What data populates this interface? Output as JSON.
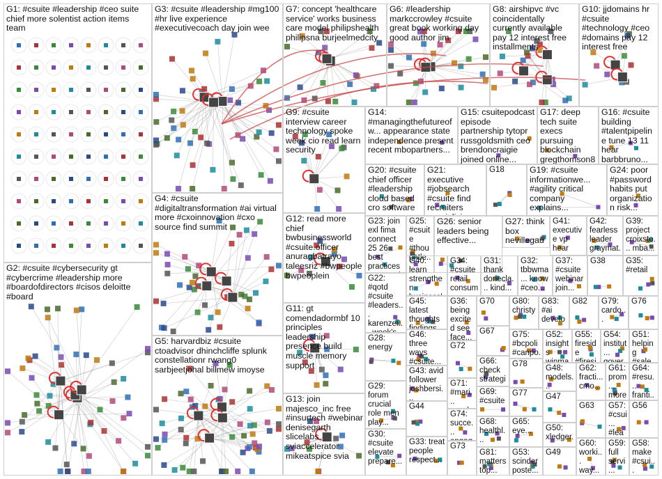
{
  "groups": [
    {
      "id": "G1",
      "label": "G1: #csuite #leadership #ceo suite chief more solentist action items team"
    },
    {
      "id": "G2",
      "label": "G2: #csuite #cybersecurity gt #cybercrime #leadership more #boardofdirectors #cisos deloitte #board"
    },
    {
      "id": "G3",
      "label": "G3: #csuite #leadership #mg100 #hr live experience #executivecoach day join wee"
    },
    {
      "id": "G4",
      "label": "G4: #csuite #digitaltransformation #ai virtual more #cxoinnovation #cxo source find summit"
    },
    {
      "id": "G5",
      "label": "G5: harvardbiz #csuite ctoadvisor dhinchcliffe splunk constellationr rwang0 sarbjeetjohal billmew imoyse"
    },
    {
      "id": "G6",
      "label": "G6: #leadership markccrowley #csuite great book working day good author jim"
    },
    {
      "id": "G7",
      "label": "G7: concept 'healthcare service' works business care model philipshealth philipsna burjeelmedcity"
    },
    {
      "id": "G8",
      "label": "G8: airshipvc #vc coincidentally currently available pay 12 interest free installments"
    },
    {
      "id": "G9",
      "label": "G9: #csuite interview career technology spoke week cio read learn security"
    },
    {
      "id": "G10",
      "label": "G10: jjdomains hr #csuite #technology #ceo #domains pay 12 interest free"
    },
    {
      "id": "G11",
      "label": "G11: gt comendadormbf 10 principles leadership presence build muscle memory support"
    },
    {
      "id": "G12",
      "label": "G12: read more chief bwbusinessworld #csuite.officer anuragbatrayo taleesriz #bwpeople bwpeoplein"
    },
    {
      "id": "G13",
      "label": "G13: join majesco_inc free #insurtech #webinar denisegarth slicelabs sviaccelerator mikeatspice svia"
    },
    {
      "id": "G14",
      "label": "G14: #managingthefutureofw... appearance state independence present recent mbopartners..."
    },
    {
      "id": "G15",
      "label": "G15: csuitepodcast episode partnership tytopr russgoldsmith ceo brendoncraigie joined online..."
    },
    {
      "id": "G16",
      "label": "G16: #csuite building #talentpipeline tune 13 11 hear barbbruno..."
    },
    {
      "id": "G17",
      "label": "G17: deep tech suite execs pursuing blockchain gregthomson8..."
    },
    {
      "id": "G18",
      "label": "G18"
    },
    {
      "id": "G19",
      "label": "G19: #csuite informationwe... #agility critical company explains..."
    },
    {
      "id": "G20",
      "label": "G20: #csuite chief officer #leadership cloud based cro software svp..."
    },
    {
      "id": "G21",
      "label": "G21: executive #jobsearch #csuite find recruiters specializing..."
    },
    {
      "id": "G22",
      "label": "G22: #qotd #csuite #leaders... karenzei... week's..."
    },
    {
      "id": "G23",
      "label": "G23: join exl fima connect 25 26 best practices perspecti..."
    },
    {
      "id": "G24",
      "label": "G24: poor #password habits put organization risk..."
    },
    {
      "id": "G25",
      "label": "G25: #csuite #thoughtle..."
    },
    {
      "id": "G26",
      "label": "G26: senior leaders being effective..."
    },
    {
      "id": "G27",
      "label": "G27: think box nevillegaunt edifylearnin..."
    },
    {
      "id": "G28",
      "label": "G28: energy"
    },
    {
      "id": "G29",
      "label": "G29: forum crucial role men play..."
    },
    {
      "id": "G30",
      "label": "G30: #csuite elevate prepare..."
    },
    {
      "id": "G31",
      "label": "G31: thank doriecla... kind..."
    },
    {
      "id": "G32",
      "label": "G32: tbbwma... know #ceo..."
    },
    {
      "id": "G33",
      "label": "G33: treat people respect..."
    },
    {
      "id": "G34",
      "label": "G34: #csuite retail consum..."
    },
    {
      "id": "G35",
      "label": "G35: #retail"
    },
    {
      "id": "G36",
      "label": "G36: being excited see face..."
    },
    {
      "id": "G37",
      "label": "G37: #csuite webinar join..."
    },
    {
      "id": "G38",
      "label": "G38"
    },
    {
      "id": "G39",
      "label": "G39: project croixsto... mba..."
    },
    {
      "id": "G40",
      "label": "G40: learn strengthen business'..."
    },
    {
      "id": "G41",
      "label": "G41: executive vp hear newmo..."
    },
    {
      "id": "G42",
      "label": "G42: fearless leader graymat..."
    },
    {
      "id": "G43",
      "label": "G43: avid follower joshbersi..."
    },
    {
      "id": "G44",
      "label": "G44"
    },
    {
      "id": "G45",
      "label": "G45: latest thoughts findings..."
    },
    {
      "id": "G46",
      "label": "G46: three ways #csuite..."
    },
    {
      "id": "G47",
      "label": "G47"
    },
    {
      "id": "G48",
      "label": "G48: models..."
    },
    {
      "id": "G49",
      "label": "G49"
    },
    {
      "id": "G50",
      "label": "G50: xledger..."
    },
    {
      "id": "G51",
      "label": "G51: helping #sale..."
    },
    {
      "id": "G52",
      "label": "G52: insights winma..."
    },
    {
      "id": "G53",
      "label": "G53: scinder poste..."
    },
    {
      "id": "G54",
      "label": "G54: institut... gover..."
    },
    {
      "id": "G55",
      "label": "G55: fireside #firesi..."
    },
    {
      "id": "G56",
      "label": "G56"
    },
    {
      "id": "G57",
      "label": "G57: #csui... #lead..."
    },
    {
      "id": "G58",
      "label": "G58: make #csui..."
    },
    {
      "id": "G59",
      "label": "G59: full servi..."
    },
    {
      "id": "G60",
      "label": "G60: worki... way..."
    },
    {
      "id": "G61",
      "label": "G61: prom... more"
    },
    {
      "id": "G62",
      "label": "G62: fracti... cmo..."
    },
    {
      "id": "G63",
      "label": "G63"
    },
    {
      "id": "G64",
      "label": "G64: #resu... franti..."
    },
    {
      "id": "G65",
      "label": "G65: eye..."
    },
    {
      "id": "G66",
      "label": "G66: check strategi..."
    },
    {
      "id": "G67",
      "label": "G67"
    },
    {
      "id": "G68",
      "label": "G68: healthl... nurses..."
    },
    {
      "id": "G69",
      "label": "G69: #csuite"
    },
    {
      "id": "G70",
      "label": "G70"
    },
    {
      "id": "G71",
      "label": "G71: #mari... cocob..."
    },
    {
      "id": "G72",
      "label": "G72"
    },
    {
      "id": "G73",
      "label": "G73"
    },
    {
      "id": "G74",
      "label": "G74: succe... engag..."
    },
    {
      "id": "G75",
      "label": "G75: #bcpoli #canpo..."
    },
    {
      "id": "G76",
      "label": "G76"
    },
    {
      "id": "G77",
      "label": "G77"
    },
    {
      "id": "G78",
      "label": "G78"
    },
    {
      "id": "G79",
      "label": "G79: cardo..."
    },
    {
      "id": "G80",
      "label": "G80: christy"
    },
    {
      "id": "G81",
      "label": "G81: matters top..."
    },
    {
      "id": "G82",
      "label": "G82"
    },
    {
      "id": "G83",
      "label": "G83: #ai develo..."
    }
  ],
  "colors": {
    "background": "#ffffff",
    "panel_border": "#cfcfcf",
    "label_text": "#111111",
    "self_loop": "#e03030",
    "edge": "#9a9a9a",
    "bridge_edge": "#c84848"
  },
  "node_icons": [
    "avatar-icon",
    "self-loop-icon"
  ]
}
